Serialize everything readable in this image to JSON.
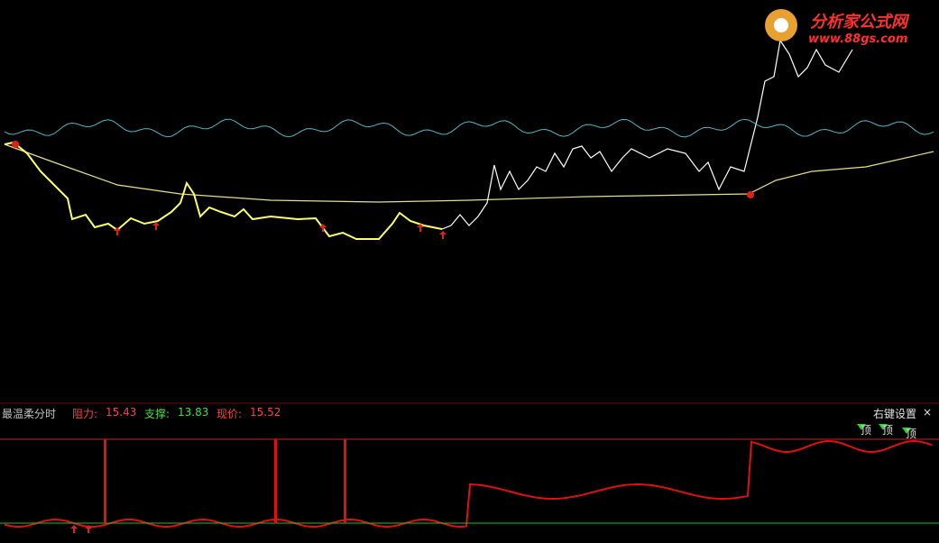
{
  "watermark": {
    "title": "分析家公式网",
    "url": "www.88gs.com"
  },
  "indicator": {
    "name": "最温柔分时",
    "resistance_label": "阻力:",
    "resistance": 15.43,
    "support_label": "支撑:",
    "support": 13.83,
    "price_label": "现价:",
    "price": 15.52
  },
  "settings": {
    "label": "右键设置",
    "close": "×"
  },
  "signals": [
    "顶",
    "顶",
    "顶"
  ]
}
